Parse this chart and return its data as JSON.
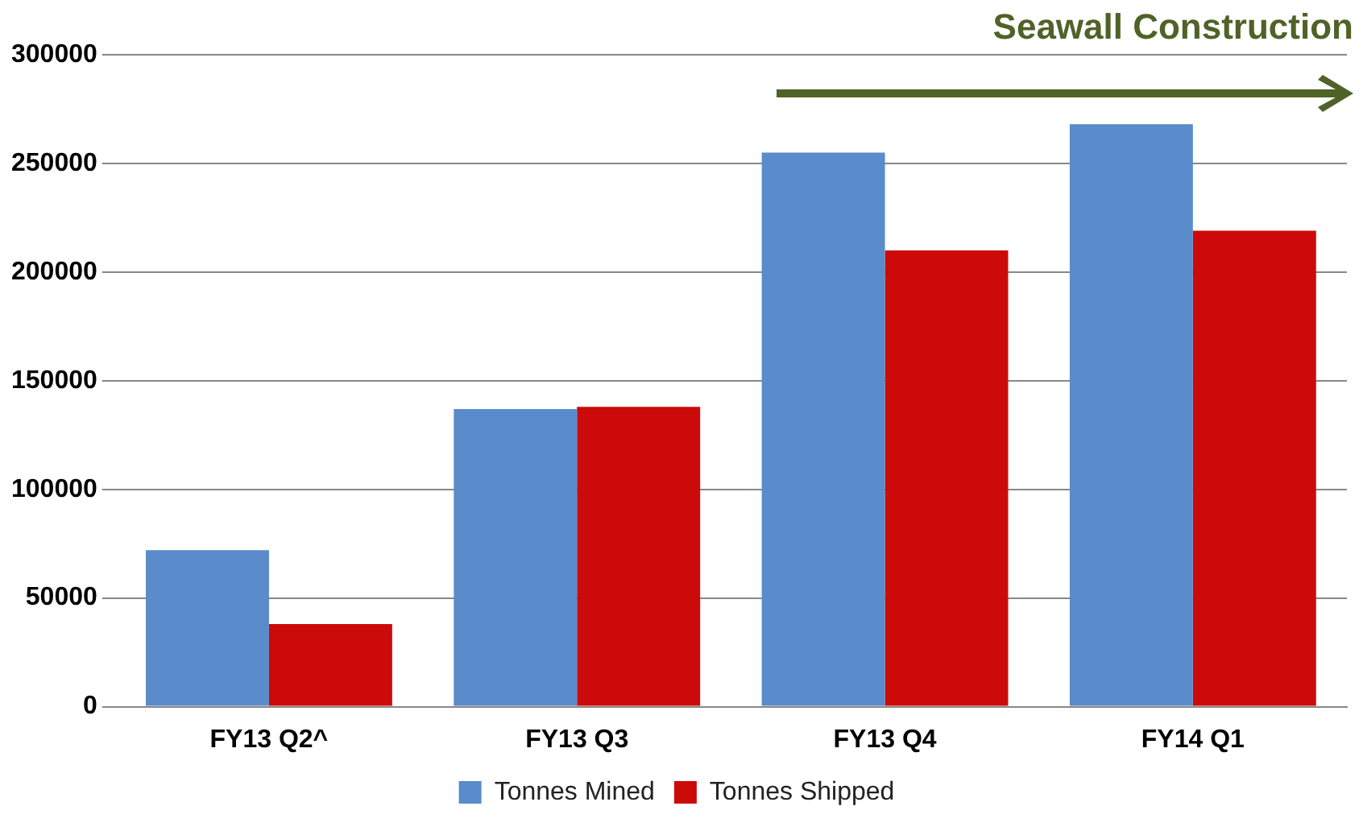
{
  "chart_data": {
    "type": "bar",
    "categories": [
      "FY13 Q2^",
      "FY13 Q3",
      "FY13 Q4",
      "FY14 Q1"
    ],
    "series": [
      {
        "name": "Tonnes Mined",
        "color": "#5a8bcb",
        "values": [
          72000,
          137000,
          255000,
          268000
        ]
      },
      {
        "name": "Tonnes Shipped",
        "color": "#cc0a0a",
        "values": [
          38000,
          138000,
          210000,
          219000
        ]
      }
    ],
    "ylim": [
      0,
      300000
    ],
    "yticks": [
      0,
      50000,
      100000,
      150000,
      200000,
      250000,
      300000
    ],
    "grid": "y",
    "legend": "bottom",
    "annotations": [
      "Seawall Construction"
    ]
  }
}
